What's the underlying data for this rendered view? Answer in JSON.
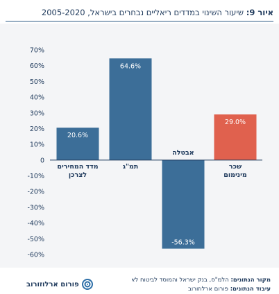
{
  "title": {
    "label": "איור 9:",
    "text": "שיעור השינוי במדדים ריאליים נבחרים בישראל, 2005-2020"
  },
  "footer": {
    "source_label": "מקור הנתונים:",
    "source_text": "הלמ\"ס, בנק ישראל והמוסד לביטוח לאומי.",
    "edit_label": "עיבוד הנתונים:",
    "edit_text": "פורום ארלוזורוב",
    "logo_text": "פורום ארלוזורוב"
  },
  "colors": {
    "bar_blue": "#3c6e98",
    "bar_red": "#e0614e",
    "background": "#f4f5f7",
    "title": "#1f3a5c"
  },
  "chart_data": {
    "type": "bar",
    "categories": [
      [
        "מדד המחירים",
        "לצרכן"
      ],
      [
        "תמ\"ג"
      ],
      [
        "אבטלה"
      ],
      [
        "שכר",
        "מינימום"
      ]
    ],
    "values": [
      20.6,
      64.6,
      -56.3,
      29.0
    ],
    "value_labels": [
      "20.6%",
      "64.6%",
      "-56.3%",
      "29.0%"
    ],
    "bar_colors": [
      "#3c6e98",
      "#3c6e98",
      "#3c6e98",
      "#e0614e"
    ],
    "yticks": [
      70,
      60,
      50,
      40,
      30,
      20,
      10,
      0,
      -10,
      -20,
      -30,
      -40,
      -50,
      -60
    ],
    "ytick_labels": [
      "70%",
      "60%",
      "50%",
      "40%",
      "30%",
      "20%",
      "10%",
      "0",
      "-10%",
      "-20%",
      "-30%",
      "-40%",
      "-50%",
      "-60%"
    ],
    "ylim": [
      -60,
      70
    ],
    "grid": false,
    "title": "",
    "xlabel": "",
    "ylabel": ""
  }
}
